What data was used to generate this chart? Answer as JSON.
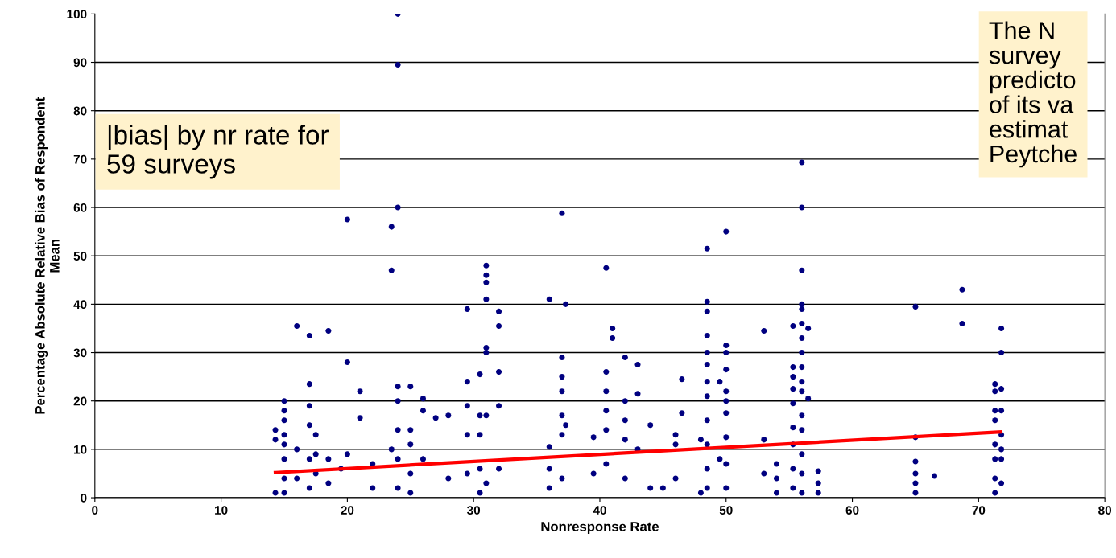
{
  "chart_data": {
    "type": "scatter",
    "xlabel": "Nonresponse Rate",
    "ylabel": "Percentage Absolute Relative Bias of Respondent\nMean",
    "xlim": [
      0,
      80
    ],
    "xticks": [
      0,
      10,
      20,
      30,
      40,
      50,
      60,
      70,
      80
    ],
    "ylim": [
      0,
      100
    ],
    "yticks": [
      0,
      10,
      20,
      30,
      40,
      50,
      60,
      70,
      80,
      90,
      100
    ],
    "grid": "y",
    "annotations": [
      "|bias| by nr rate for\n59 surveys",
      "The N\nsurvey\npredicto\nof its va\nestimat\nPeytche"
    ],
    "series": [
      {
        "marker": "circle",
        "color": "#000080",
        "x": [
          14.3,
          14.3,
          14.3,
          15,
          15,
          15,
          15,
          15,
          15,
          15,
          15,
          16,
          16,
          16,
          17,
          17,
          17,
          17,
          17,
          17,
          17.5,
          17.5,
          17.5,
          18.5,
          18.5,
          18.5,
          19.5,
          20,
          20,
          20,
          21,
          21,
          22,
          22,
          23.5,
          23.5,
          23.5,
          24,
          24,
          24,
          24,
          24,
          24,
          24,
          24,
          25,
          25,
          25,
          25,
          25,
          26,
          26,
          26,
          27,
          28,
          28,
          29.5,
          29.5,
          29.5,
          29.5,
          29.5,
          30.5,
          30.5,
          30.5,
          30.5,
          30.5,
          31,
          31,
          31,
          31,
          31,
          31,
          31,
          31,
          32,
          32,
          32,
          32,
          32,
          36,
          36,
          36,
          36,
          37,
          37,
          37,
          37,
          37,
          37,
          37,
          37.3,
          37.3,
          39.5,
          39.5,
          40.5,
          40.5,
          40.5,
          40.5,
          40.5,
          40.5,
          41,
          41,
          42,
          42,
          42,
          42,
          42,
          43,
          43,
          43,
          44,
          44,
          45,
          46,
          46,
          46,
          46.5,
          46.5,
          48,
          48,
          48.5,
          48.5,
          48.5,
          48.5,
          48.5,
          48.5,
          48.5,
          48.5,
          48.5,
          48.5,
          48.5,
          48.5,
          49.5,
          49.5,
          50,
          50,
          50,
          50,
          50,
          50,
          50,
          50,
          50,
          50,
          53,
          53,
          53,
          54,
          54,
          54,
          55.3,
          55.3,
          55.3,
          55.3,
          55.3,
          55.3,
          55.3,
          55.3,
          55.3,
          56,
          56,
          56,
          56,
          56,
          56,
          56,
          56,
          56,
          56,
          56,
          56,
          56,
          56,
          56,
          56,
          56.5,
          56.5,
          57.3,
          57.3,
          57.3,
          65,
          65,
          65,
          65,
          65,
          65,
          66.5,
          68.7,
          68.7,
          71.3,
          71.3,
          71.3,
          71.3,
          71.3,
          71.3,
          71.3,
          71.3,
          71.8,
          71.8,
          71.8,
          71.8,
          71.8,
          71.8,
          71.8,
          71.8
        ],
        "values": [
          14,
          12,
          1,
          20,
          18,
          16,
          13,
          11,
          8,
          4,
          1,
          35.5,
          10,
          4,
          33.5,
          23.5,
          19,
          15,
          8,
          2,
          13,
          9,
          5,
          34.5,
          8,
          3,
          6,
          57.5,
          28,
          9,
          22,
          16.5,
          7,
          2,
          56,
          47,
          10,
          100,
          89.5,
          60,
          23,
          20,
          14,
          8,
          2,
          23,
          14,
          11,
          5,
          1,
          20.5,
          18,
          8,
          16.5,
          17,
          4,
          39,
          24,
          19,
          13,
          5,
          25.5,
          17,
          13,
          6,
          1,
          48,
          46,
          44.5,
          41,
          31,
          30,
          17,
          3,
          38.5,
          35.5,
          26,
          19,
          6,
          41,
          10.5,
          6,
          2,
          58.8,
          29,
          25,
          22,
          17,
          13,
          4,
          40,
          15,
          12.5,
          5,
          47.5,
          26,
          22,
          18,
          14,
          7,
          35,
          33,
          29,
          20,
          16,
          12,
          4,
          27.5,
          21.5,
          10,
          15,
          2,
          2,
          13,
          11,
          4,
          24.5,
          17.5,
          12,
          1,
          51.5,
          40.5,
          38.5,
          33.5,
          30,
          27.5,
          24,
          21,
          16,
          11,
          6,
          2,
          24,
          8,
          55,
          31.5,
          30,
          26.5,
          22,
          20,
          17.5,
          12.5,
          7,
          2,
          34.5,
          12,
          5,
          7,
          4,
          1,
          35.5,
          27,
          25,
          22.5,
          19.5,
          14.5,
          11,
          6,
          2,
          69.3,
          60,
          47,
          40,
          39,
          36,
          33,
          30,
          27,
          24,
          22,
          17,
          14,
          9,
          5,
          1,
          35,
          20.5,
          5.5,
          3,
          1,
          39.5,
          12.5,
          7.5,
          5,
          3,
          1,
          4.5,
          43,
          36,
          23.5,
          22,
          18,
          16,
          11,
          8,
          4,
          1,
          35,
          30,
          22.5,
          18,
          13,
          10,
          8,
          3
        ]
      },
      {
        "type": "line",
        "marker": "none",
        "color": "#ff0000",
        "x": [
          14.3,
          71.7
        ],
        "values": [
          5.2,
          13.6
        ]
      }
    ]
  }
}
